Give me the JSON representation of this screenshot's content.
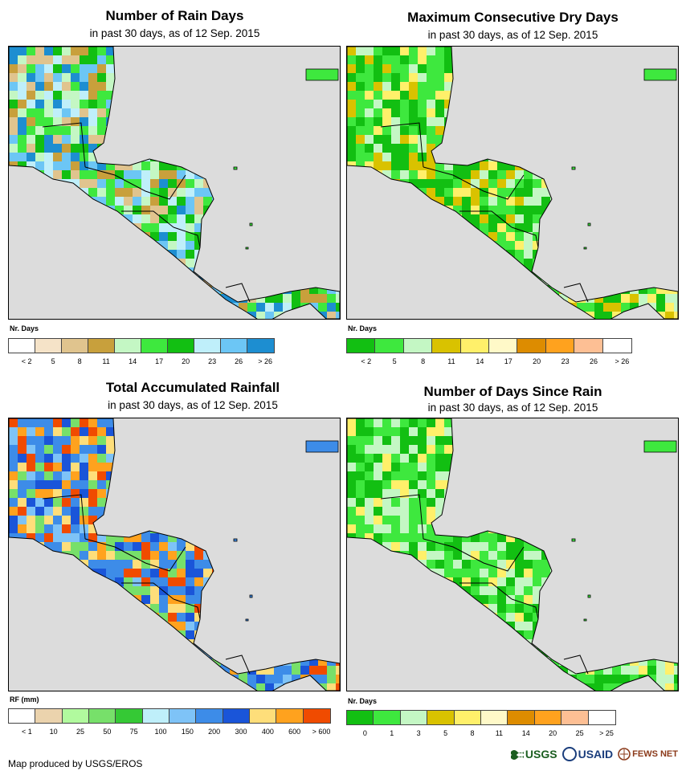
{
  "panels": [
    {
      "title": "Number of Rain Days",
      "subtitle": "in past 30 days, as of 12 Sep. 2015",
      "legend_title": "Nr. Days",
      "legend_colors": [
        "#ffffff",
        "#f5e3c8",
        "#e0c48e",
        "#c8a03c",
        "#c4f7c4",
        "#3ee83e",
        "#12bf12",
        "#bfeffa",
        "#6cc6f5",
        "#1d8ed1"
      ],
      "legend_labels": [
        "< 2",
        "5",
        "8",
        "11",
        "14",
        "17",
        "20",
        "23",
        "26",
        "> 26"
      ],
      "map_palette": [
        "#3ee83e",
        "#12bf12",
        "#c4f7c4",
        "#e0c48e",
        "#c8a03c",
        "#6cc6f5",
        "#bfeffa",
        "#1d8ed1"
      ]
    },
    {
      "title": "Maximum Consecutive Dry Days",
      "subtitle": "in past 30 days, as of 12 Sep. 2015",
      "legend_title": "Nr. Days",
      "legend_colors": [
        "#12bf12",
        "#3ee83e",
        "#c4f7c4",
        "#d9c200",
        "#fff06a",
        "#fff9c8",
        "#dd8c00",
        "#ffa21e",
        "#fdbf94",
        "#ffffff"
      ],
      "legend_labels": [
        "< 2",
        "5",
        "8",
        "11",
        "14",
        "17",
        "20",
        "23",
        "26",
        "> 26"
      ],
      "map_palette": [
        "#3ee83e",
        "#12bf12",
        "#c4f7c4",
        "#12bf12",
        "#3ee83e",
        "#fff06a",
        "#d9c200"
      ]
    },
    {
      "title": "Total Accumulated Rainfall",
      "subtitle": "in past 30 days, as of 12 Sep. 2015",
      "legend_title": "RF (mm)",
      "legend_colors": [
        "#ffffff",
        "#ebd3ad",
        "#b1fa9e",
        "#77e06a",
        "#35c935",
        "#bfeffa",
        "#7ec3f7",
        "#3d8ce8",
        "#1a55d9",
        "#fede7a",
        "#ffa21e",
        "#f04b00"
      ],
      "legend_labels": [
        "< 1",
        "10",
        "25",
        "50",
        "75",
        "100",
        "150",
        "200",
        "300",
        "400",
        "600",
        "> 600"
      ],
      "map_palette": [
        "#3d8ce8",
        "#1a55d9",
        "#7ec3f7",
        "#fede7a",
        "#ffa21e",
        "#77e06a",
        "#3d8ce8",
        "#f04b00"
      ]
    },
    {
      "title": "Number of Days Since Rain",
      "subtitle": "in past 30 days, as of 12 Sep. 2015",
      "legend_title": "Nr. Days",
      "legend_colors": [
        "#12bf12",
        "#3ee83e",
        "#c4f7c4",
        "#d9c200",
        "#fff06a",
        "#fff9c8",
        "#dd8c00",
        "#ffa21e",
        "#fdbf94",
        "#ffffff"
      ],
      "legend_labels": [
        "0",
        "1",
        "3",
        "5",
        "8",
        "11",
        "14",
        "20",
        "25",
        "> 25"
      ],
      "map_palette": [
        "#3ee83e",
        "#12bf12",
        "#c4f7c4",
        "#c4f7c4",
        "#3ee83e",
        "#12bf12",
        "#fff06a"
      ]
    }
  ],
  "credit": "Map produced by USGS/EROS",
  "logos": {
    "usgs": "USGS",
    "usaid": "USAID",
    "fews": "FEWS NET"
  },
  "colors": {
    "ocean": "#dcdcdc",
    "border": "#000000"
  }
}
